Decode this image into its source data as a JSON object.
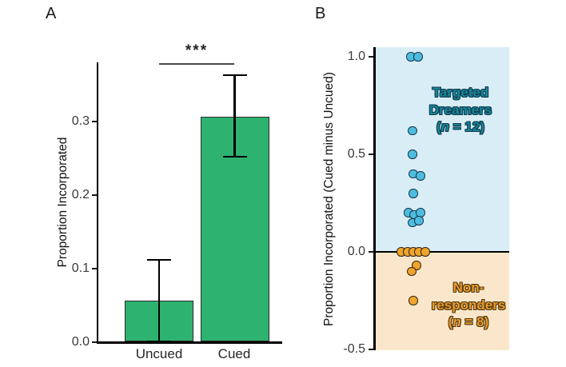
{
  "panel_labels": {
    "a": "A",
    "b": "B"
  },
  "panelA": {
    "x_tick_labels": [
      "Uncued",
      "Cued"
    ]
  },
  "panelB": {
    "targeted": {
      "line1": "Targeted",
      "line2": "Dreamers",
      "n_open": "(",
      "n_italic": "n",
      "n_rest": " = 12)",
      "text_color": "#188599",
      "outline_color": "#0E3D4D"
    },
    "nonresponders": {
      "line1": "Non-",
      "line2": "responders",
      "n_open": "(",
      "n_italic": "n",
      "n_rest": " = 8)",
      "text_color": "#E89B2E",
      "outline_color": "#53390E"
    }
  },
  "chart_data": [
    {
      "type": "bar",
      "panel": "A",
      "categories": [
        "Uncued",
        "Cued"
      ],
      "values": [
        0.057,
        0.307
      ],
      "error_low": [
        0.001,
        0.252
      ],
      "error_high": [
        0.112,
        0.363
      ],
      "ylabel": "Proportion Incorporated",
      "ylim": [
        0,
        0.38
      ],
      "yticks": [
        0.0,
        0.1,
        0.2,
        0.3
      ],
      "grid": false,
      "bar_color": "#2EB270",
      "bar_edge_color": "#2b2b2b",
      "significance": {
        "label": "***",
        "between": [
          "Uncued",
          "Cued"
        ]
      }
    },
    {
      "type": "scatter",
      "panel": "B",
      "ylabel": "Proportion Incorporated (Cued minus Uncued)",
      "ylim": [
        -0.5,
        1.05
      ],
      "yticks": [
        1.0,
        0.5,
        0.0,
        -0.5
      ],
      "grid": false,
      "zero_line": true,
      "series": [
        {
          "name": "Targeted Dreamers",
          "n": 12,
          "dot_color": "#4EBCDE",
          "dot_edge_color": "#14384D",
          "region_color": "#D9EDF6",
          "points": [
            {
              "dx": -2,
              "v": 1.0
            },
            {
              "dx": 7,
              "v": 1.0
            },
            {
              "dx": 0,
              "v": 0.62
            },
            {
              "dx": 0,
              "v": 0.5
            },
            {
              "dx": 1,
              "v": 0.4
            },
            {
              "dx": 10,
              "v": 0.39
            },
            {
              "dx": 1,
              "v": 0.3
            },
            {
              "dx": -5,
              "v": 0.2
            },
            {
              "dx": 2,
              "v": 0.19
            },
            {
              "dx": 10,
              "v": 0.2
            },
            {
              "dx": 0,
              "v": 0.15
            },
            {
              "dx": 8,
              "v": 0.16
            }
          ]
        },
        {
          "name": "Non-responders",
          "n": 8,
          "dot_color": "#F0A42C",
          "dot_edge_color": "#2e2415",
          "region_color": "#FAE7CB",
          "points": [
            {
              "dx": -14,
              "v": 0
            },
            {
              "dx": -6,
              "v": 0
            },
            {
              "dx": 1,
              "v": 0
            },
            {
              "dx": 8,
              "v": 0
            },
            {
              "dx": 16,
              "v": 0
            },
            {
              "dx": 5,
              "v": -0.07
            },
            {
              "dx": -1,
              "v": -0.1
            },
            {
              "dx": 1,
              "v": -0.25
            }
          ]
        }
      ]
    }
  ]
}
